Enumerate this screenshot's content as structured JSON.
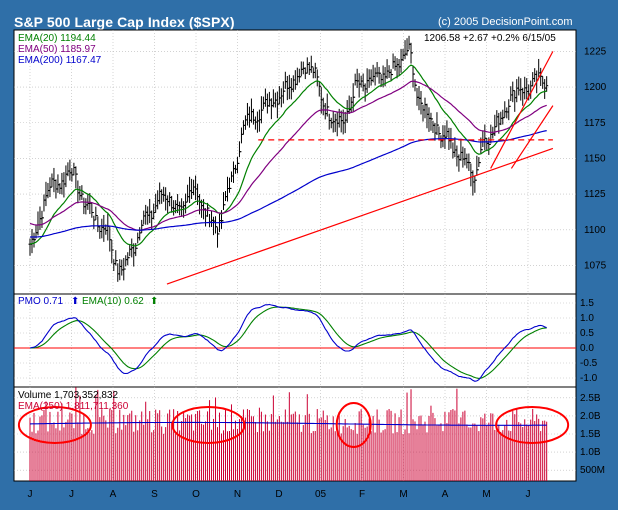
{
  "title": "S&P 500 Large Cap Index ($SPX)",
  "copyright": "(c) 2005 DecisionPoint.com",
  "price_panel": {
    "ema20_label": "EMA(20) 1194.44",
    "ema50_label": "EMA(50) 1185.97",
    "ema200_label": "EMA(200) 1167.47",
    "last_quote": "1206.58  +2.67  +0.2%  6/15/05",
    "y_ticks": [
      "1225",
      "1200",
      "1175",
      "1150",
      "1125",
      "1100",
      "1075"
    ],
    "y_tick_values": [
      1225,
      1200,
      1175,
      1150,
      1125,
      1100,
      1075
    ],
    "ylim": [
      1055,
      1240
    ],
    "colors": {
      "ema20": "#008000",
      "ema50": "#800080",
      "ema200": "#0000cc",
      "trend": "#ff0000",
      "bars": "#000000"
    }
  },
  "pmo_panel": {
    "pmo_label": "PMO  0.71",
    "pmo_arrow": "⬆",
    "ema_label": "EMA(10)  0.62",
    "ema_arrow": "⬆",
    "y_ticks": [
      "1.5",
      "1.0",
      "0.5",
      "0.0",
      "-0.5",
      "-1.0"
    ],
    "y_tick_values": [
      1.5,
      1.0,
      0.5,
      0.0,
      -0.5,
      -1.0
    ],
    "ylim": [
      -1.3,
      1.8
    ],
    "colors": {
      "pmo": "#0000cc",
      "ema": "#008000",
      "zero": "#ff0000"
    }
  },
  "volume_panel": {
    "volume_label": "Volume  1,703,352,832",
    "ema_label": "EMA(250) 1,811,711,360",
    "y_ticks": [
      "2.5B",
      "2.0B",
      "1.5B",
      "1.0B",
      "500M"
    ],
    "y_tick_values": [
      2.5,
      2.0,
      1.5,
      1.0,
      0.5
    ],
    "ylim": [
      0.2,
      2.8
    ],
    "colors": {
      "bars": "#cc0033",
      "ema": "#0000cc",
      "circles": "#ff0000"
    }
  },
  "x_axis": {
    "labels": [
      "J",
      "J",
      "A",
      "S",
      "O",
      "N",
      "D",
      "05",
      "F",
      "M",
      "A",
      "M",
      "J"
    ]
  },
  "chart_data": [
    {
      "type": "ohlc",
      "title": "S&P 500 Large Cap Index ($SPX)",
      "x_months": [
        "Jun",
        "Jul",
        "Aug",
        "Sep",
        "Oct",
        "Nov",
        "Dec",
        "Jan",
        "Feb",
        "Mar",
        "Apr",
        "May",
        "Jun"
      ],
      "close_anchors": [
        {
          "m": 0.0,
          "v": 1090
        },
        {
          "m": 0.5,
          "v": 1130
        },
        {
          "m": 1.0,
          "v": 1140
        },
        {
          "m": 1.4,
          "v": 1115
        },
        {
          "m": 1.8,
          "v": 1100
        },
        {
          "m": 2.2,
          "v": 1070
        },
        {
          "m": 2.5,
          "v": 1090
        },
        {
          "m": 2.8,
          "v": 1110
        },
        {
          "m": 3.3,
          "v": 1125
        },
        {
          "m": 3.6,
          "v": 1110
        },
        {
          "m": 3.9,
          "v": 1130
        },
        {
          "m": 4.2,
          "v": 1115
        },
        {
          "m": 4.5,
          "v": 1100
        },
        {
          "m": 4.8,
          "v": 1130
        },
        {
          "m": 5.2,
          "v": 1175
        },
        {
          "m": 5.6,
          "v": 1185
        },
        {
          "m": 6.0,
          "v": 1195
        },
        {
          "m": 6.5,
          "v": 1210
        },
        {
          "m": 6.8,
          "v": 1215
        },
        {
          "m": 7.1,
          "v": 1185
        },
        {
          "m": 7.5,
          "v": 1175
        },
        {
          "m": 7.9,
          "v": 1200
        },
        {
          "m": 8.3,
          "v": 1205
        },
        {
          "m": 8.7,
          "v": 1210
        },
        {
          "m": 9.1,
          "v": 1225
        },
        {
          "m": 9.4,
          "v": 1190
        },
        {
          "m": 9.7,
          "v": 1175
        },
        {
          "m": 10.0,
          "v": 1165
        },
        {
          "m": 10.4,
          "v": 1150
        },
        {
          "m": 10.7,
          "v": 1140
        },
        {
          "m": 11.0,
          "v": 1165
        },
        {
          "m": 11.3,
          "v": 1175
        },
        {
          "m": 11.6,
          "v": 1195
        },
        {
          "m": 12.0,
          "v": 1200
        },
        {
          "m": 12.4,
          "v": 1206
        }
      ],
      "series": [
        {
          "name": "EMA(20)",
          "last": 1194.44
        },
        {
          "name": "EMA(50)",
          "last": 1185.97
        },
        {
          "name": "EMA(200)",
          "last": 1167.47
        }
      ],
      "trendlines": [
        {
          "from": {
            "m": 3.3,
            "v": 1062
          },
          "to": {
            "m": 12.6,
            "v": 1157
          }
        },
        {
          "from": {
            "m": 11.1,
            "v": 1143
          },
          "to": {
            "m": 12.6,
            "v": 1225
          }
        },
        {
          "from": {
            "m": 11.6,
            "v": 1143
          },
          "to": {
            "m": 12.6,
            "v": 1187
          }
        }
      ],
      "support_line": {
        "v": 1163,
        "from_m": 5.5,
        "to_m": 12.6,
        "style": "dashed"
      },
      "ylim": [
        1055,
        1240
      ]
    },
    {
      "type": "line",
      "title": "PMO",
      "series": [
        {
          "name": "PMO",
          "last": 0.71
        },
        {
          "name": "EMA(10)",
          "last": 0.62
        }
      ],
      "ylim": [
        -1.3,
        1.8
      ]
    },
    {
      "type": "bar",
      "title": "Volume",
      "last_volume": 1703352832,
      "ema250_last": 1811711360,
      "highlight_circles_months": [
        0.6,
        4.3,
        7.8,
        12.1
      ],
      "ylim": [
        0.2,
        2.8
      ]
    }
  ]
}
